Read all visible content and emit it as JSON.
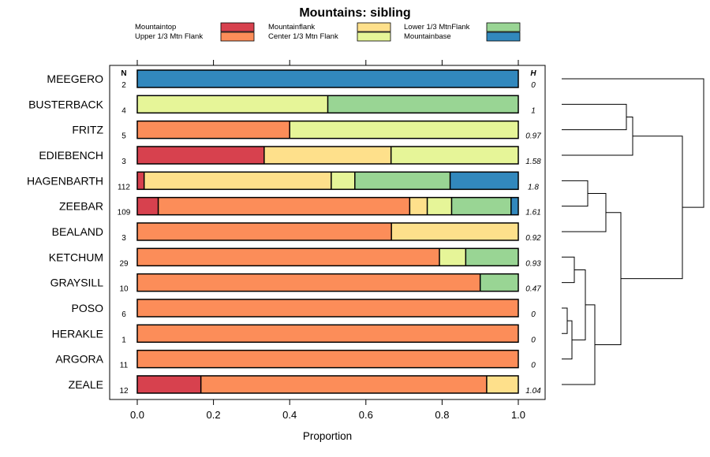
{
  "chart_data": {
    "type": "bar",
    "stacked": true,
    "orientation": "horizontal",
    "title": "Mountains: sibling",
    "xlabel": "Proportion",
    "xlim": [
      0,
      1
    ],
    "xticks": [
      "0.0",
      "0.2",
      "0.4",
      "0.6",
      "0.8",
      "1.0"
    ],
    "n_header": "N",
    "h_header": "H",
    "legend": [
      {
        "name": "Mountaintop",
        "color": "#d7414e"
      },
      {
        "name": "Upper 1/3 Mtn Flank",
        "color": "#fc8d59"
      },
      {
        "name": "Mountainflank",
        "color": "#fee08b"
      },
      {
        "name": "Center 1/3 Mtn Flank",
        "color": "#e6f598"
      },
      {
        "name": "Lower 1/3 MtnFlank",
        "color": "#99d594"
      },
      {
        "name": "Mountainbase",
        "color": "#3288bd"
      }
    ],
    "rows": [
      {
        "name": "MEEGERO",
        "n": "2",
        "h": "0",
        "values": [
          0,
          0,
          0,
          0,
          0,
          1.0
        ]
      },
      {
        "name": "BUSTERBACK",
        "n": "4",
        "h": "1",
        "values": [
          0,
          0,
          0,
          0.5,
          0.5,
          0
        ]
      },
      {
        "name": "FRITZ",
        "n": "5",
        "h": "0.97",
        "values": [
          0,
          0.4,
          0,
          0.6,
          0,
          0
        ]
      },
      {
        "name": "EDIEBENCH",
        "n": "3",
        "h": "1.58",
        "values": [
          0.333,
          0,
          0.333,
          0.334,
          0,
          0
        ]
      },
      {
        "name": "HAGENBARTH",
        "n": "112",
        "h": "1.8",
        "values": [
          0.018,
          0,
          0.491,
          0.062,
          0.25,
          0.179
        ]
      },
      {
        "name": "ZEEBAR",
        "n": "109",
        "h": "1.61",
        "values": [
          0.055,
          0.66,
          0.046,
          0.064,
          0.156,
          0.019
        ]
      },
      {
        "name": "BEALAND",
        "n": "3",
        "h": "0.92",
        "values": [
          0,
          0.667,
          0.333,
          0,
          0,
          0
        ]
      },
      {
        "name": "KETCHUM",
        "n": "29",
        "h": "0.93",
        "values": [
          0,
          0.793,
          0,
          0.069,
          0.138,
          0
        ]
      },
      {
        "name": "GRAYSILL",
        "n": "10",
        "h": "0.47",
        "values": [
          0,
          0.9,
          0,
          0,
          0.1,
          0
        ]
      },
      {
        "name": "POSO",
        "n": "6",
        "h": "0",
        "values": [
          0,
          1.0,
          0,
          0,
          0,
          0
        ]
      },
      {
        "name": "HERAKLE",
        "n": "1",
        "h": "0",
        "values": [
          0,
          1.0,
          0,
          0,
          0,
          0
        ]
      },
      {
        "name": "ARGORA",
        "n": "11",
        "h": "0",
        "values": [
          0,
          1.0,
          0,
          0,
          0,
          0
        ]
      },
      {
        "name": "ZEALE",
        "n": "12",
        "h": "1.04",
        "values": [
          0.167,
          0.75,
          0.083,
          0,
          0,
          0
        ]
      }
    ],
    "dendrogram": true
  }
}
